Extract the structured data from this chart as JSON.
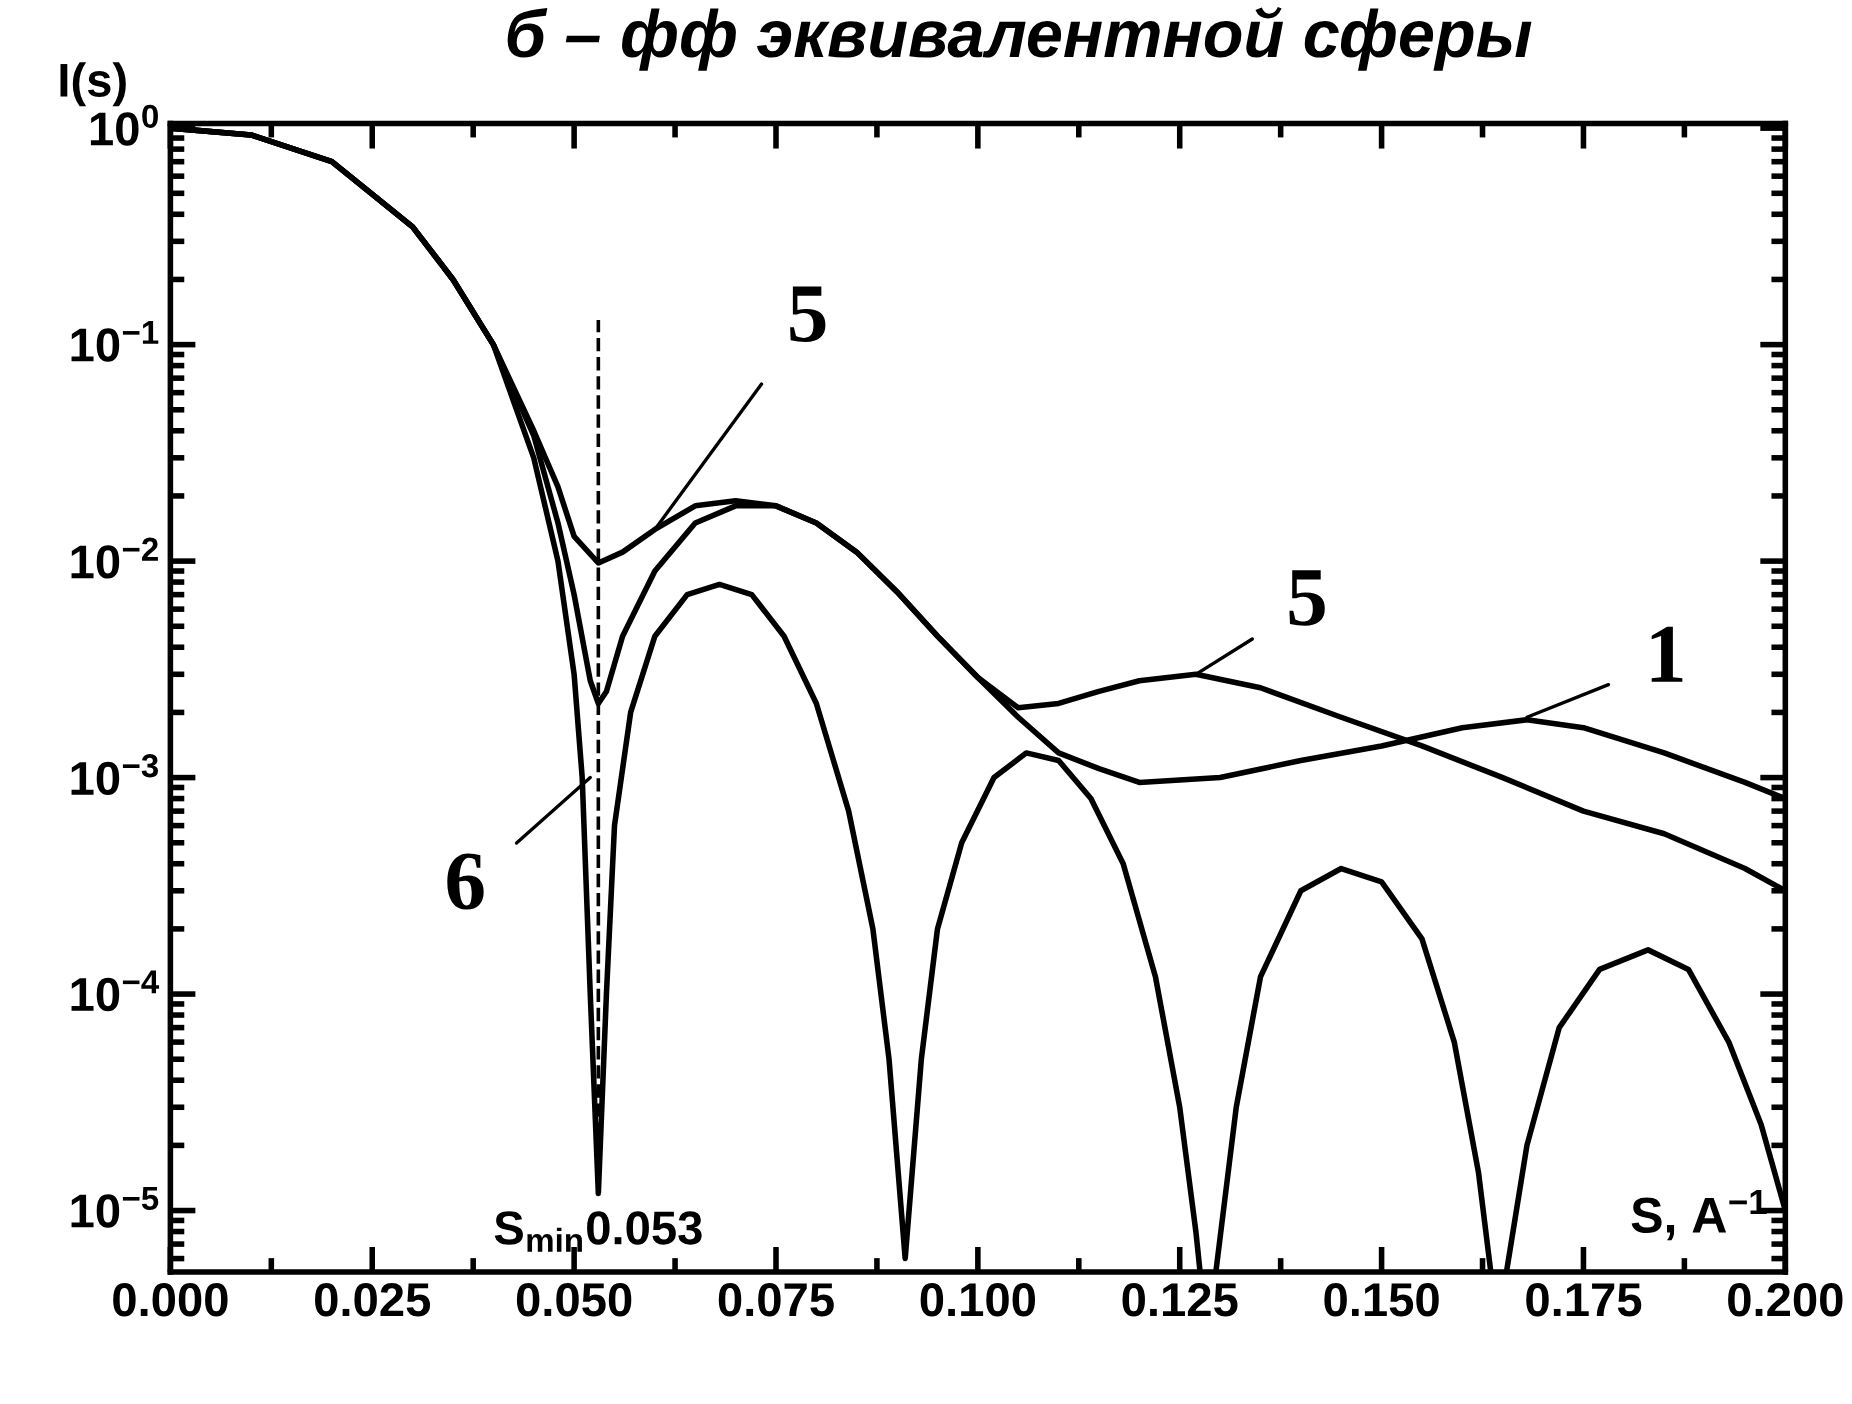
{
  "chart_data": {
    "type": "line",
    "title": "б – фф эквивалентной сферы",
    "xlabel": "S, A$^{−1}$",
    "ylabel": "I(s)",
    "log": "y",
    "xlim": [
      0,
      0.2
    ],
    "ylim": [
      5.2e-06,
      1.05
    ],
    "xticks": [
      {
        "value": 0,
        "label": "0.000"
      },
      {
        "value": 0.025,
        "label": "0.025"
      },
      {
        "value": 0.05,
        "label": "0.050"
      },
      {
        "value": 0.075,
        "label": "0.075"
      },
      {
        "value": 0.1,
        "label": "0.100"
      },
      {
        "value": 0.125,
        "label": "0.125"
      },
      {
        "value": 0.15,
        "label": "0.150"
      },
      {
        "value": 0.175,
        "label": "0.175"
      },
      {
        "value": 0.2,
        "label": "0.200"
      }
    ],
    "yticks": [
      {
        "value": 1,
        "label": "10$^{0}$"
      },
      {
        "value": 0.1,
        "label": "10$^{−1}$"
      },
      {
        "value": 0.01,
        "label": "10$^{−2}$"
      },
      {
        "value": 0.001,
        "label": "10$^{−3}$"
      },
      {
        "value": 0.0001,
        "label": "10$^{−4}$"
      },
      {
        "value": 1e-05,
        "label": "10$^{−5}$"
      }
    ],
    "grid": false,
    "legend": false,
    "marker": "none",
    "series": [
      {
        "color": "#000000",
        "x": [
          0,
          0.01,
          0.02,
          0.03,
          0.035,
          0.04,
          0.045,
          0.048,
          0.05,
          0.053,
          0.056,
          0.06,
          0.065,
          0.07,
          0.075,
          0.08,
          0.085,
          0.09,
          0.095,
          0.1,
          0.105,
          0.11,
          0.115,
          0.12,
          0.127,
          0.135,
          0.145,
          0.155,
          0.165,
          0.175,
          0.185,
          0.195,
          0.2
        ],
        "values": [
          1,
          0.93,
          0.7,
          0.35,
          0.2,
          0.1,
          0.04,
          0.022,
          0.013,
          0.0098,
          0.011,
          0.014,
          0.018,
          0.019,
          0.018,
          0.015,
          0.011,
          0.0072,
          0.0045,
          0.0029,
          0.0021,
          0.0022,
          0.0025,
          0.0028,
          0.003,
          0.0026,
          0.0019,
          0.0014,
          0.001,
          0.0007,
          0.00055,
          0.00038,
          0.0003
        ]
      },
      {
        "color": "#000000",
        "x": [
          0,
          0.01,
          0.02,
          0.03,
          0.035,
          0.04,
          0.045,
          0.048,
          0.05,
          0.052,
          0.053,
          0.054,
          0.056,
          0.06,
          0.065,
          0.07,
          0.075,
          0.08,
          0.085,
          0.09,
          0.095,
          0.1,
          0.105,
          0.11,
          0.115,
          0.12,
          0.13,
          0.14,
          0.15,
          0.16,
          0.168,
          0.175,
          0.185,
          0.195,
          0.2
        ],
        "values": [
          1,
          0.93,
          0.7,
          0.35,
          0.2,
          0.1,
          0.038,
          0.015,
          0.007,
          0.0028,
          0.0022,
          0.0025,
          0.0045,
          0.009,
          0.015,
          0.018,
          0.018,
          0.015,
          0.011,
          0.0072,
          0.0045,
          0.0029,
          0.0019,
          0.0013,
          0.0011,
          0.00095,
          0.001,
          0.0012,
          0.0014,
          0.0017,
          0.00185,
          0.0017,
          0.0013,
          0.00095,
          0.0008
        ]
      },
      {
        "color": "#000000",
        "x": [
          0,
          0.01,
          0.02,
          0.03,
          0.035,
          0.04,
          0.045,
          0.048,
          0.05,
          0.051,
          0.052,
          0.053,
          0.054,
          0.055,
          0.057,
          0.06,
          0.064,
          0.068,
          0.072,
          0.076,
          0.08,
          0.084,
          0.087,
          0.089,
          0.091,
          0.093,
          0.095,
          0.098,
          0.102,
          0.106,
          0.11,
          0.114,
          0.118,
          0.122,
          0.125,
          0.127,
          0.1275,
          0.128,
          0.1295,
          0.132,
          0.135,
          0.14,
          0.145,
          0.15,
          0.155,
          0.159,
          0.162,
          0.1635,
          0.164,
          0.1655,
          0.168,
          0.172,
          0.177,
          0.183,
          0.188,
          0.193,
          0.197,
          0.2
        ],
        "values": [
          1,
          0.93,
          0.7,
          0.35,
          0.2,
          0.1,
          0.03,
          0.01,
          0.003,
          0.001,
          0.0001,
          1.2e-05,
          0.0001,
          0.0006,
          0.002,
          0.0045,
          0.007,
          0.0078,
          0.007,
          0.0045,
          0.0022,
          0.0007,
          0.0002,
          5e-05,
          6e-06,
          5e-05,
          0.0002,
          0.0005,
          0.001,
          0.0013,
          0.0012,
          0.0008,
          0.0004,
          0.00012,
          3e-05,
          8e-06,
          5.3e-06,
          null,
          5.3e-06,
          3e-05,
          0.00012,
          0.0003,
          0.00038,
          0.00033,
          0.00018,
          6e-05,
          1.5e-05,
          5.3e-06,
          null,
          5.3e-06,
          2e-05,
          7e-05,
          0.00013,
          0.00016,
          0.00013,
          6e-05,
          2.5e-05,
          1e-05
        ]
      },
      {
        "color": "#000000",
        "line_style": "dashed",
        "x": [
          0.053,
          0.053
        ],
        "values": [
          1.2e-05,
          0.13
        ]
      }
    ],
    "annotations": [
      {
        "text": "5",
        "x": 0.06,
        "y": 0.014
      },
      {
        "text": "5",
        "x": 0.127,
        "y": 0.003
      },
      {
        "text": "1",
        "x": 0.168,
        "y": 0.0019
      },
      {
        "text": "6",
        "x": 0.052,
        "y": 0.001
      },
      {
        "text": "S$_{min}$0.053",
        "x": 0.053,
        "y": 1.2e-05
      }
    ]
  }
}
